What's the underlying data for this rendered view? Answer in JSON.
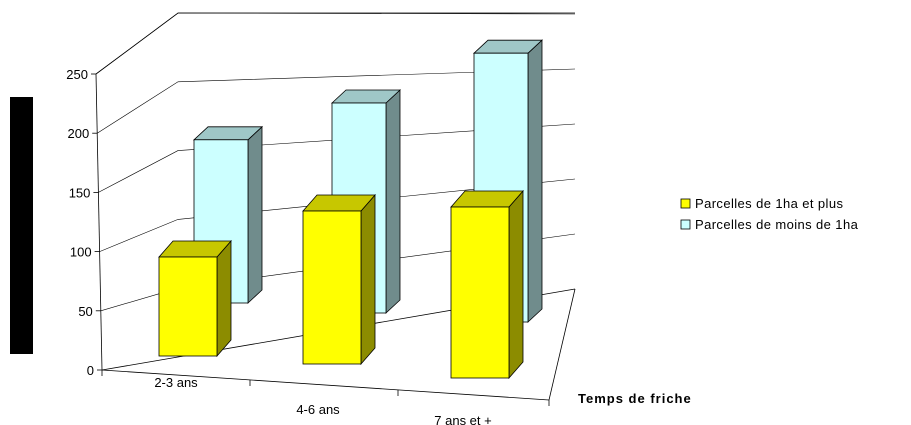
{
  "chart_data": {
    "type": "bar",
    "title": "",
    "xlabel": "Temps de friche",
    "ylabel": "",
    "categories": [
      "2-3 ans",
      "4-6 ans",
      "7 ans et +"
    ],
    "series": [
      {
        "name": "Parcelles de 1ha et plus",
        "values": [
          110,
          170,
          180
        ],
        "color": "#ffff00"
      },
      {
        "name": "Parcelles de moins de 1ha",
        "values": [
          170,
          200,
          240
        ],
        "color": "#ccffff"
      }
    ],
    "yticks": [
      "0",
      "50",
      "100",
      "150",
      "200",
      "250"
    ],
    "ylim": [
      0,
      250
    ],
    "grid": true,
    "legend": "right",
    "three_d": true
  }
}
